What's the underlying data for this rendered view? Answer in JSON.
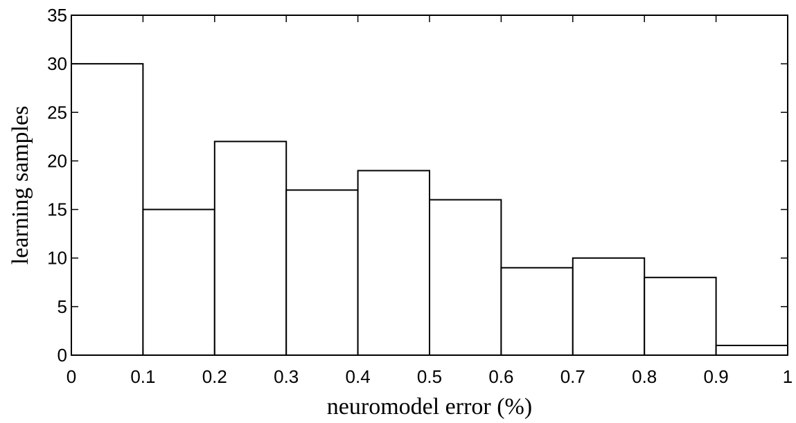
{
  "chart_data": {
    "type": "bar",
    "title": "",
    "xlabel": "neuromodel error (%)",
    "ylabel": "learning samples",
    "bin_edges": [
      0,
      0.1,
      0.2,
      0.3,
      0.4,
      0.5,
      0.6,
      0.7,
      0.8,
      0.9,
      1
    ],
    "values": [
      30,
      15,
      22,
      17,
      19,
      16,
      9,
      10,
      8,
      1
    ],
    "xlim": [
      0,
      1
    ],
    "ylim": [
      0,
      35
    ],
    "xticks": [
      "0",
      "0.1",
      "0.2",
      "0.3",
      "0.4",
      "0.5",
      "0.6",
      "0.7",
      "0.8",
      "0.9",
      "1"
    ],
    "yticks": [
      "0",
      "5",
      "10",
      "15",
      "20",
      "25",
      "30",
      "35"
    ],
    "grid": false,
    "colors": {
      "bar_fill": "#ffffff",
      "bar_stroke": "#000000",
      "axis": "#000000"
    }
  }
}
